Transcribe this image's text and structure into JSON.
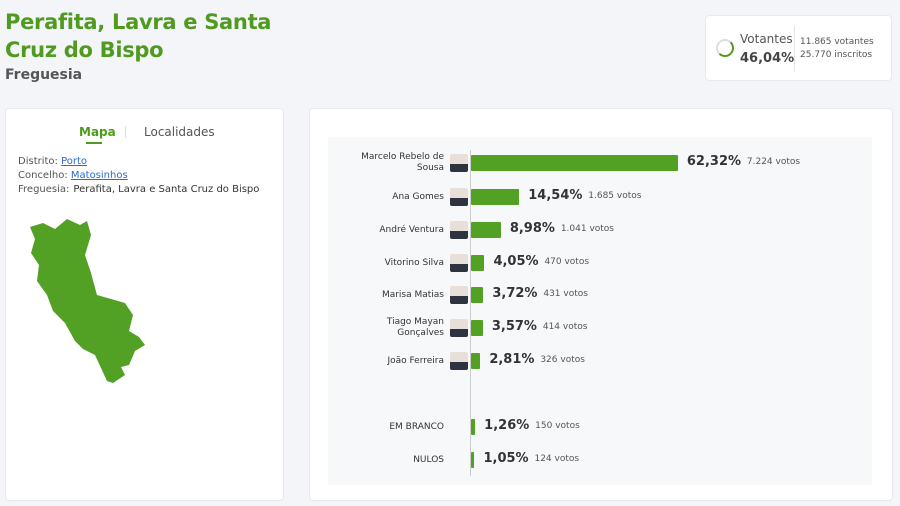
{
  "header": {
    "title": "Perafita, Lavra e Santa Cruz do Bispo",
    "subtitle": "Freguesia"
  },
  "turnout": {
    "label": "Votantes",
    "percent": "46,04%",
    "percent_value": 46.04,
    "voters": "11.865 votantes",
    "registered": "25.770 inscritos"
  },
  "left_panel": {
    "tabs": [
      {
        "label": "Mapa",
        "active": true
      },
      {
        "label": "Localidades",
        "active": false
      }
    ],
    "distrito_label": "Distrito:",
    "distrito": "Porto",
    "concelho_label": "Concelho:",
    "concelho": "Matosinhos",
    "freguesia_label": "Freguesia:",
    "freguesia": "Perafita, Lavra e Santa Cruz do Bispo"
  },
  "colors": {
    "accent": "#4f9a1f",
    "bar": "#52a124",
    "link": "#2a6bd1"
  },
  "results": [
    {
      "name": "Marcelo Rebelo de Sousa",
      "percent": "62,32%",
      "value": 62.32,
      "votes": "7.224 votos"
    },
    {
      "name": "Ana Gomes",
      "percent": "14,54%",
      "value": 14.54,
      "votes": "1.685 votos"
    },
    {
      "name": "André Ventura",
      "percent": "8,98%",
      "value": 8.98,
      "votes": "1.041 votos"
    },
    {
      "name": "Vitorino Silva",
      "percent": "4,05%",
      "value": 4.05,
      "votes": "470 votos"
    },
    {
      "name": "Marisa Matias",
      "percent": "3,72%",
      "value": 3.72,
      "votes": "431 votos"
    },
    {
      "name": "Tiago Mayan Gonçalves",
      "percent": "3,57%",
      "value": 3.57,
      "votes": "414 votos"
    },
    {
      "name": "João Ferreira",
      "percent": "2,81%",
      "value": 2.81,
      "votes": "326 votos"
    },
    {
      "name": "EM BRANCO",
      "percent": "1,26%",
      "value": 1.26,
      "votes": "150 votos"
    },
    {
      "name": "NULOS",
      "percent": "1,05%",
      "value": 1.05,
      "votes": "124 votos"
    }
  ]
}
